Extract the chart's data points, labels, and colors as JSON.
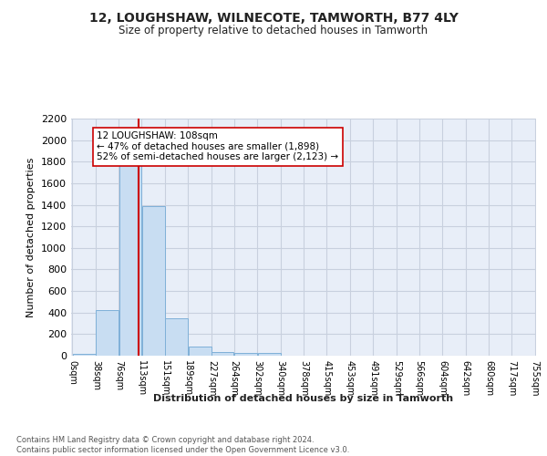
{
  "title": "12, LOUGHSHAW, WILNECOTE, TAMWORTH, B77 4LY",
  "subtitle": "Size of property relative to detached houses in Tamworth",
  "xlabel": "Distribution of detached houses by size in Tamworth",
  "ylabel": "Number of detached properties",
  "bar_color": "#c8ddf2",
  "bar_edge_color": "#7fb0d8",
  "grid_color": "#c8d0de",
  "background_color": "#e8eef8",
  "annotation_text": "12 LOUGHSHAW: 108sqm\n← 47% of detached houses are smaller (1,898)\n52% of semi-detached houses are larger (2,123) →",
  "vline_x": 108,
  "vline_color": "#cc0000",
  "bin_edges": [
    0,
    38,
    76,
    113,
    151,
    189,
    227,
    264,
    302,
    340,
    378,
    415,
    453,
    491,
    529,
    566,
    604,
    642,
    680,
    717,
    755
  ],
  "bar_heights": [
    15,
    420,
    1800,
    1390,
    350,
    85,
    30,
    25,
    25,
    0,
    0,
    0,
    0,
    0,
    0,
    0,
    0,
    0,
    0,
    0
  ],
  "ylim": [
    0,
    2200
  ],
  "yticks": [
    0,
    200,
    400,
    600,
    800,
    1000,
    1200,
    1400,
    1600,
    1800,
    2000,
    2200
  ],
  "footer_text": "Contains HM Land Registry data © Crown copyright and database right 2024.\nContains public sector information licensed under the Open Government Licence v3.0.",
  "tick_labels": [
    "0sqm",
    "38sqm",
    "76sqm",
    "113sqm",
    "151sqm",
    "189sqm",
    "227sqm",
    "264sqm",
    "302sqm",
    "340sqm",
    "378sqm",
    "415sqm",
    "453sqm",
    "491sqm",
    "529sqm",
    "566sqm",
    "604sqm",
    "642sqm",
    "680sqm",
    "717sqm",
    "755sqm"
  ]
}
